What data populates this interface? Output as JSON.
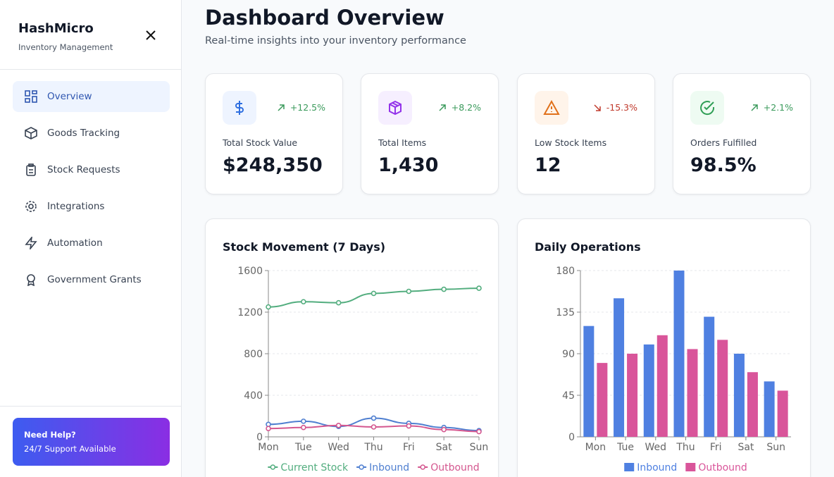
{
  "sidebar": {
    "brand": "HashMicro",
    "subtitle": "Inventory Management",
    "nav": [
      "Overview",
      "Goods Tracking",
      "Stock Requests",
      "Integrations",
      "Automation",
      "Government Grants"
    ],
    "help": {
      "title": "Need Help?",
      "text": "24/7 Support Available"
    }
  },
  "header": {
    "title": "Dashboard Overview",
    "subtitle": "Real-time insights into your inventory performance"
  },
  "stats": [
    {
      "label": "Total Stock Value",
      "value": "$248,350",
      "change": "+12.5%"
    },
    {
      "label": "Total Items",
      "value": "1,430",
      "change": "+8.2%"
    },
    {
      "label": "Low Stock Items",
      "value": "12",
      "change": "-15.3%"
    },
    {
      "label": "Orders Fulfilled",
      "value": "98.5%",
      "change": "+2.1%"
    }
  ],
  "chart_data": [
    {
      "type": "line",
      "title": "Stock Movement (7 Days)",
      "categories": [
        "Mon",
        "Tue",
        "Wed",
        "Thu",
        "Fri",
        "Sat",
        "Sun"
      ],
      "series": [
        {
          "name": "Current Stock",
          "color": "#52ad7e",
          "values": [
            1250,
            1300,
            1290,
            1380,
            1400,
            1420,
            1430
          ]
        },
        {
          "name": "Inbound",
          "color": "#4f7fd0",
          "values": [
            120,
            150,
            100,
            180,
            130,
            90,
            60
          ]
        },
        {
          "name": "Outbound",
          "color": "#d4578f",
          "values": [
            80,
            90,
            110,
            95,
            105,
            70,
            50
          ]
        }
      ],
      "ylim": [
        0,
        1600
      ],
      "yticks": [
        0,
        400,
        800,
        1200,
        1600
      ],
      "grid": true,
      "legend": "bottom"
    },
    {
      "type": "bar",
      "title": "Daily Operations",
      "categories": [
        "Mon",
        "Tue",
        "Wed",
        "Thu",
        "Fri",
        "Sat",
        "Sun"
      ],
      "series": [
        {
          "name": "Inbound",
          "color": "#4f80e1",
          "values": [
            120,
            150,
            100,
            180,
            130,
            90,
            60
          ]
        },
        {
          "name": "Outbound",
          "color": "#d9559a",
          "values": [
            80,
            90,
            110,
            95,
            105,
            70,
            50
          ]
        }
      ],
      "ylim": [
        0,
        180
      ],
      "yticks": [
        0,
        45,
        90,
        135,
        180
      ],
      "grid": true,
      "legend": "bottom"
    }
  ]
}
